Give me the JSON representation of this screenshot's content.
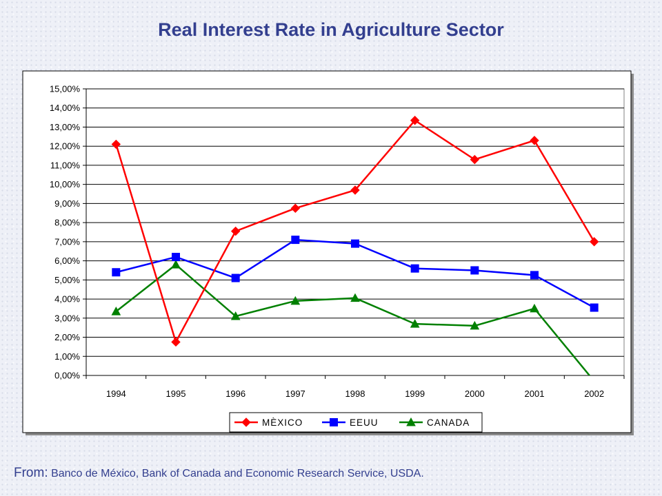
{
  "title": "Real Interest Rate in Agriculture Sector",
  "source": {
    "prefix": "From:",
    "text": "Banco de México, Bank of Canada and Economic Research Service, USDA."
  },
  "chart_data": {
    "type": "line",
    "title": "Real Interest Rate in Agriculture Sector",
    "categories": [
      "1994",
      "1995",
      "1996",
      "1997",
      "1998",
      "1999",
      "2000",
      "2001",
      "2002"
    ],
    "y_ticks": [
      "0,00%",
      "1,00%",
      "2,00%",
      "3,00%",
      "4,00%",
      "5,00%",
      "6,00%",
      "7,00%",
      "8,00%",
      "9,00%",
      "10,00%",
      "11,00%",
      "12,00%",
      "13,00%",
      "14,00%",
      "15,00%"
    ],
    "ylim": [
      0,
      15
    ],
    "y_unit": "%",
    "grid": true,
    "legend_position": "bottom",
    "series": [
      {
        "name": "MÈXICO",
        "color": "#ff0000",
        "marker": "diamond",
        "values": [
          12.1,
          1.75,
          7.55,
          8.75,
          9.7,
          13.35,
          11.3,
          12.3,
          7.0
        ]
      },
      {
        "name": "EEUU",
        "color": "#0000ff",
        "marker": "square",
        "values": [
          5.4,
          6.2,
          5.1,
          7.1,
          6.9,
          5.6,
          5.5,
          5.25,
          3.55
        ]
      },
      {
        "name": "CANADA",
        "color": "#008000",
        "marker": "triangle",
        "values": [
          3.35,
          5.8,
          3.1,
          3.9,
          4.05,
          2.7,
          2.6,
          3.5,
          -0.3
        ]
      }
    ]
  }
}
